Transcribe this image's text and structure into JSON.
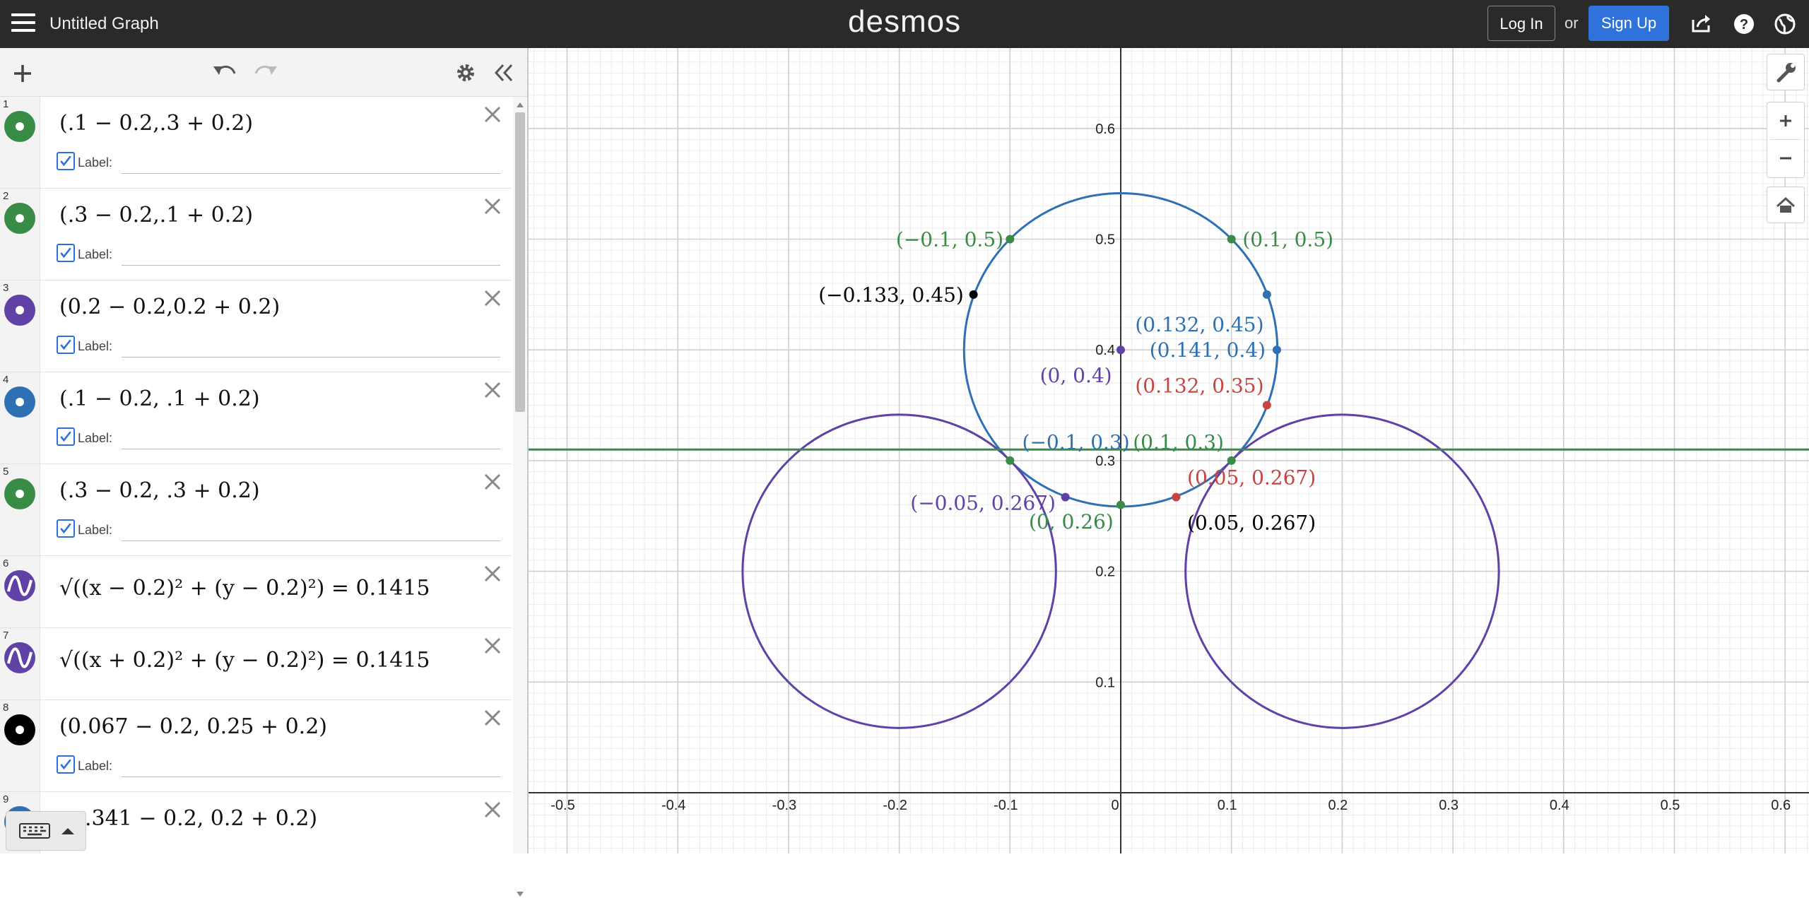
{
  "header": {
    "title": "Untitled Graph",
    "brand": "desmos",
    "login_label": "Log In",
    "or_label": "or",
    "signup_label": "Sign Up"
  },
  "expressions": [
    {
      "num": "1",
      "latex": "(.1 − 0.2,.3 + 0.2)",
      "kind": "point",
      "color": "#388c46",
      "label": "Label:",
      "label_checked": true
    },
    {
      "num": "2",
      "latex": "(.3 − 0.2,.1 + 0.2)",
      "kind": "point",
      "color": "#388c46",
      "label": "Label:",
      "label_checked": true
    },
    {
      "num": "3",
      "latex": "(0.2 − 0.2,0.2 + 0.2)",
      "kind": "point",
      "color": "#6042a6",
      "label": "Label:",
      "label_checked": true
    },
    {
      "num": "4",
      "latex": "(.1 − 0.2, .1 + 0.2)",
      "kind": "point",
      "color": "#2d70b3",
      "label": "Label:",
      "label_checked": true
    },
    {
      "num": "5",
      "latex": "(.3 − 0.2, .3 + 0.2)",
      "kind": "point",
      "color": "#388c46",
      "label": "Label:",
      "label_checked": true
    },
    {
      "num": "6",
      "latex": "√((x − 0.2)² + (y − 0.2)²) = 0.1415",
      "kind": "curve",
      "color": "#6042a6"
    },
    {
      "num": "7",
      "latex": "√((x + 0.2)² + (y − 0.2)²) = 0.1415",
      "kind": "curve",
      "color": "#6042a6"
    },
    {
      "num": "8",
      "latex": "(0.067 − 0.2, 0.25 + 0.2)",
      "kind": "point",
      "color": "#000000",
      "label": "Label:",
      "label_checked": true
    },
    {
      "num": "9",
      "latex": ".341 − 0.2, 0.2 + 0.2)",
      "kind": "point",
      "color": "#2d70b3"
    }
  ],
  "graph": {
    "x_ticks": [
      "-0.5",
      "-0.4",
      "-0.3",
      "-0.2",
      "-0.1",
      "0",
      "0.1",
      "0.2",
      "0.3",
      "0.4",
      "0.5",
      "0.6"
    ],
    "y_ticks": [
      "0.1",
      "0.2",
      "0.3",
      "0.4",
      "0.5",
      "0.6"
    ],
    "colors": {
      "blue": "#2d70b3",
      "green": "#388c46",
      "purple": "#6042a6",
      "red": "#c74440",
      "black": "#000000"
    },
    "point_labels": [
      {
        "text": "(−0.1, 0.5)",
        "color": "#388c46"
      },
      {
        "text": "(0.1, 0.5)",
        "color": "#388c46"
      },
      {
        "text": "(−0.133, 0.45)",
        "color": "#000000"
      },
      {
        "text": "(0.132, 0.45)",
        "color": "#2d70b3"
      },
      {
        "text": "(0.141, 0.4)",
        "color": "#2d70b3"
      },
      {
        "text": "(0, 0.4)",
        "color": "#6042a6"
      },
      {
        "text": "(0.132, 0.35)",
        "color": "#c74440"
      },
      {
        "text": "(−0.1, 0.3)",
        "color": "#2d70b3"
      },
      {
        "text": "(0.1, 0.3)",
        "color": "#388c46"
      },
      {
        "text": "(0.05, 0.267)",
        "color": "#c74440"
      },
      {
        "text": "(−0.05, 0.267)",
        "color": "#6042a6"
      },
      {
        "text": "(0, 0.26)",
        "color": "#388c46"
      },
      {
        "text": "(0.05, 0.267)",
        "color": "#000000"
      }
    ]
  }
}
